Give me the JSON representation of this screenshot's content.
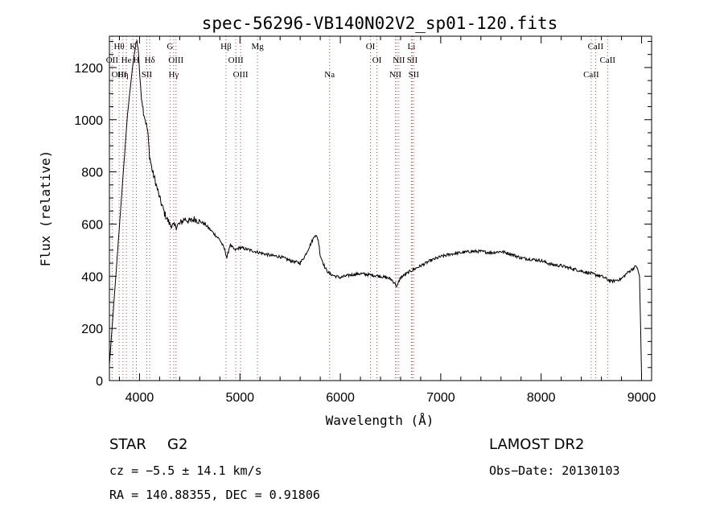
{
  "chart_data": {
    "type": "line",
    "title": "spec-56296-VB140N02V2_sp01-120.fits",
    "xlabel": "Wavelength (Å)",
    "ylabel": "Flux (relative)",
    "xlim": [
      3700,
      9100
    ],
    "ylim": [
      0,
      1320
    ],
    "x_ticks": [
      4000,
      5000,
      6000,
      7000,
      8000,
      9000
    ],
    "y_ticks": [
      0,
      200,
      400,
      600,
      800,
      1000,
      1200
    ],
    "grid": false,
    "series": [
      {
        "x": [
          3700,
          3760,
          3820,
          3880,
          3930,
          3970,
          3990,
          4010,
          4040,
          4080,
          4100,
          4130,
          4160,
          4200,
          4250,
          4300,
          4350,
          4400,
          4450,
          4500,
          4550,
          4600,
          4650,
          4700,
          4750,
          4800,
          4850,
          4870,
          4900,
          4950,
          5000,
          5100,
          5200,
          5300,
          5400,
          5500,
          5600,
          5650,
          5700,
          5750,
          5780,
          5800,
          5850,
          5890,
          5950,
          6000,
          6100,
          6200,
          6300,
          6400,
          6500,
          6540,
          6563,
          6600,
          6700,
          6800,
          6900,
          7000,
          7100,
          7200,
          7300,
          7400,
          7500,
          7600,
          7700,
          7800,
          7900,
          8000,
          8100,
          8200,
          8300,
          8400,
          8500,
          8600,
          8650,
          8700,
          8750,
          8800,
          8850,
          8900,
          8950,
          8980,
          9000
        ],
        "y": [
          60,
          380,
          700,
          1020,
          1200,
          1310,
          1260,
          1120,
          1030,
          960,
          860,
          800,
          760,
          700,
          640,
          600,
          590,
          600,
          620,
          610,
          620,
          610,
          600,
          580,
          560,
          540,
          500,
          470,
          520,
          500,
          510,
          500,
          490,
          480,
          475,
          460,
          450,
          480,
          520,
          560,
          540,
          480,
          430,
          410,
          400,
          395,
          405,
          410,
          405,
          400,
          390,
          375,
          360,
          395,
          420,
          440,
          460,
          475,
          485,
          490,
          495,
          495,
          490,
          495,
          485,
          470,
          465,
          460,
          445,
          440,
          430,
          420,
          410,
          400,
          390,
          380,
          385,
          390,
          410,
          425,
          440,
          400,
          20
        ]
      }
    ],
    "lines": [
      {
        "x": 3727,
        "labels": [
          "",
          "OII"
        ]
      },
      {
        "x": 3797,
        "labels": [
          "Hθ",
          "",
          "OIII"
        ]
      },
      {
        "x": 3835,
        "labels": [
          "",
          "",
          "Hη"
        ]
      },
      {
        "x": 3869,
        "labels": [
          "",
          "He"
        ]
      },
      {
        "x": 3934,
        "labels": [
          "K"
        ]
      },
      {
        "x": 3968,
        "labels": [
          "",
          "H"
        ]
      },
      {
        "x": 4072,
        "labels": [
          "",
          "",
          "SII"
        ]
      },
      {
        "x": 4102,
        "labels": [
          "",
          "Hδ"
        ]
      },
      {
        "x": 4304,
        "labels": [
          "G"
        ]
      },
      {
        "x": 4340,
        "labels": [
          "",
          "",
          "Hγ"
        ]
      },
      {
        "x": 4363,
        "labels": [
          "",
          "OIII"
        ]
      },
      {
        "x": 4861,
        "labels": [
          "Hβ"
        ]
      },
      {
        "x": 4959,
        "labels": [
          "",
          "OIII"
        ]
      },
      {
        "x": 5007,
        "labels": [
          "",
          "",
          "OIII"
        ]
      },
      {
        "x": 5175,
        "labels": [
          "Mg"
        ]
      },
      {
        "x": 5893,
        "labels": [
          "",
          "",
          "Na"
        ]
      },
      {
        "x": 6300,
        "labels": [
          "OI"
        ]
      },
      {
        "x": 6364,
        "labels": [
          "",
          "OI"
        ]
      },
      {
        "x": 6548,
        "labels": [
          "",
          "",
          "NII"
        ]
      },
      {
        "x": 6563,
        "labels": [
          "",
          "",
          ""
        ]
      },
      {
        "x": 6583,
        "labels": [
          "",
          "NII"
        ]
      },
      {
        "x": 6708,
        "labels": [
          "Li"
        ]
      },
      {
        "x": 6716,
        "labels": [
          "",
          "SII"
        ]
      },
      {
        "x": 6731,
        "labels": [
          "",
          "",
          "SII"
        ]
      },
      {
        "x": 8498,
        "labels": [
          "",
          "",
          "CaII"
        ]
      },
      {
        "x": 8542,
        "labels": [
          "CaII"
        ]
      },
      {
        "x": 8662,
        "labels": [
          "",
          "CaII"
        ]
      }
    ]
  },
  "footer": {
    "class_label": "STAR",
    "subclass_label": "G2",
    "survey_label": "LAMOST DR2",
    "redshift_text": "cz = −5.5 ± 14.1 km/s",
    "obs_date_text": "Obs−Date: 20130103",
    "coords_text": "RA = 140.88355, DEC =   0.91806"
  }
}
